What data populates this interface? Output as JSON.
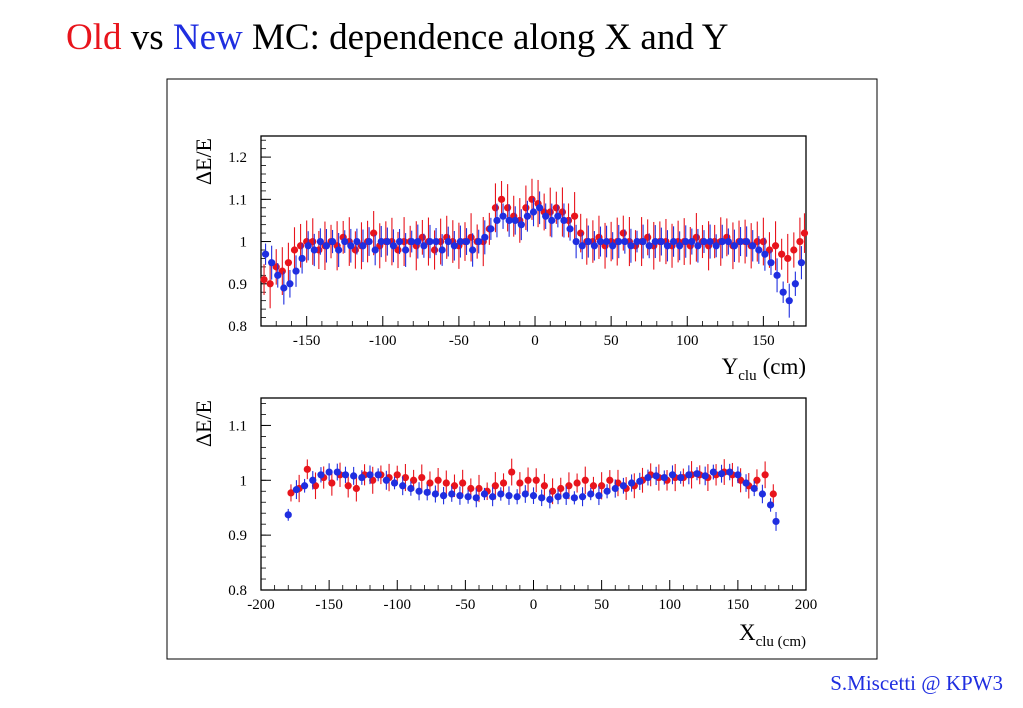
{
  "title": {
    "old": "Old",
    "vs": "vs",
    "new": "New",
    "rest": "MC: dependence along X and Y"
  },
  "footer": "S.Miscetti @ KPW3",
  "colors": {
    "old": "#e8141c",
    "new": "#1f2ee0"
  },
  "chart_data": [
    {
      "type": "scatter",
      "ylabel": "ΔE/E",
      "xlabel": {
        "main": "Y",
        "sub": "clu",
        "unit": "(cm)"
      },
      "xlim": [
        -180,
        178
      ],
      "ylim": [
        0.8,
        1.25
      ],
      "xticks": [
        -150,
        -100,
        -50,
        0,
        50,
        100,
        150
      ],
      "yticks": [
        0.8,
        0.9,
        1,
        1.1,
        1.2
      ],
      "ytick_labels": [
        "0.8",
        "0.9",
        "1",
        "1.1",
        "1.2"
      ],
      "series": [
        {
          "color": "old",
          "x": [
            -178,
            -174,
            -170,
            -166,
            -162,
            -158,
            -154,
            -150,
            -146,
            -142,
            -138,
            -134,
            -130,
            -126,
            -122,
            -118,
            -114,
            -110,
            -106,
            -102,
            -98,
            -94,
            -90,
            -86,
            -82,
            -78,
            -74,
            -70,
            -66,
            -62,
            -58,
            -54,
            -50,
            -46,
            -42,
            -38,
            -34,
            -30,
            -26,
            -22,
            -18,
            -14,
            -10,
            -6,
            -2,
            2,
            6,
            10,
            14,
            18,
            22,
            26,
            30,
            34,
            38,
            42,
            46,
            50,
            54,
            58,
            62,
            66,
            70,
            74,
            78,
            82,
            86,
            90,
            94,
            98,
            102,
            106,
            110,
            114,
            118,
            122,
            126,
            130,
            134,
            138,
            142,
            146,
            150,
            154,
            158,
            162,
            166,
            170,
            174,
            177
          ],
          "y": [
            0.91,
            0.9,
            0.94,
            0.93,
            0.95,
            0.98,
            0.99,
            1.0,
            1.0,
            0.98,
            0.99,
            1.0,
            0.99,
            1.01,
            1.0,
            0.98,
            0.99,
            1.0,
            1.02,
            0.99,
            1.0,
            1.0,
            0.98,
            1.0,
            1.0,
            0.99,
            1.01,
            1.0,
            0.98,
            1.0,
            1.01,
            1.0,
            0.99,
            1.0,
            1.01,
            1.0,
            1.0,
            1.03,
            1.08,
            1.1,
            1.08,
            1.06,
            1.05,
            1.08,
            1.1,
            1.09,
            1.07,
            1.07,
            1.08,
            1.07,
            1.05,
            1.06,
            1.02,
            1.0,
            1.0,
            1.01,
            0.99,
            1.0,
            1.0,
            1.02,
            1.0,
            0.99,
            1.0,
            1.01,
            0.99,
            1.0,
            1.0,
            0.99,
            1.0,
            1.0,
            0.99,
            1.01,
            1.0,
            0.99,
            1.0,
            1.0,
            1.01,
            0.99,
            1.0,
            1.0,
            0.99,
            1.0,
            1.0,
            0.98,
            0.99,
            0.97,
            0.96,
            0.98,
            1.0,
            1.02
          ]
        },
        {
          "color": "new",
          "x": [
            -177,
            -173,
            -169,
            -165,
            -161,
            -157,
            -153,
            -149,
            -145,
            -141,
            -137,
            -133,
            -129,
            -125,
            -121,
            -117,
            -113,
            -109,
            -105,
            -101,
            -97,
            -93,
            -89,
            -85,
            -81,
            -77,
            -73,
            -69,
            -65,
            -61,
            -57,
            -53,
            -49,
            -45,
            -41,
            -37,
            -33,
            -29,
            -25,
            -21,
            -17,
            -13,
            -9,
            -5,
            -1,
            3,
            7,
            11,
            15,
            19,
            23,
            27,
            31,
            35,
            39,
            43,
            47,
            51,
            55,
            59,
            63,
            67,
            71,
            75,
            79,
            83,
            87,
            91,
            95,
            99,
            103,
            107,
            111,
            115,
            119,
            123,
            127,
            131,
            135,
            139,
            143,
            147,
            151,
            155,
            159,
            163,
            167,
            171,
            175
          ],
          "y": [
            0.97,
            0.95,
            0.92,
            0.89,
            0.9,
            0.93,
            0.96,
            0.99,
            0.98,
            1.0,
            0.99,
            1.0,
            0.98,
            1.0,
            0.99,
            1.0,
            0.99,
            1.0,
            0.98,
            1.0,
            1.0,
            0.99,
            1.0,
            0.98,
            1.0,
            1.0,
            0.99,
            1.0,
            1.0,
            0.98,
            1.0,
            0.99,
            1.0,
            1.0,
            0.98,
            1.0,
            1.01,
            1.03,
            1.05,
            1.06,
            1.05,
            1.05,
            1.04,
            1.06,
            1.07,
            1.08,
            1.06,
            1.05,
            1.06,
            1.05,
            1.03,
            1.0,
            0.99,
            1.0,
            0.99,
            1.0,
            1.0,
            0.99,
            1.0,
            1.0,
            0.99,
            1.0,
            1.0,
            0.99,
            1.0,
            1.0,
            0.99,
            1.0,
            0.99,
            1.0,
            1.0,
            0.99,
            1.0,
            1.0,
            0.99,
            1.0,
            1.0,
            0.99,
            1.0,
            1.0,
            0.99,
            0.98,
            0.97,
            0.95,
            0.92,
            0.88,
            0.86,
            0.9,
            0.95
          ]
        }
      ]
    },
    {
      "type": "scatter",
      "ylabel": "ΔE/E",
      "xlabel": {
        "main": "X",
        "sub": "clu (cm)",
        "unit": ""
      },
      "xlim": [
        -200,
        200
      ],
      "ylim": [
        0.8,
        1.15
      ],
      "xticks": [
        -200,
        -150,
        -100,
        -50,
        0,
        50,
        100,
        150,
        200
      ],
      "yticks": [
        0.8,
        0.9,
        1,
        1.1
      ],
      "ytick_labels": [
        "0.8",
        "0.9",
        "1",
        "1.1"
      ],
      "series": [
        {
          "color": "old",
          "x": [
            -178,
            -172,
            -166,
            -160,
            -154,
            -148,
            -142,
            -136,
            -130,
            -124,
            -118,
            -112,
            -106,
            -100,
            -94,
            -88,
            -82,
            -76,
            -70,
            -64,
            -58,
            -52,
            -46,
            -40,
            -34,
            -28,
            -22,
            -16,
            -10,
            -4,
            2,
            8,
            14,
            20,
            26,
            32,
            38,
            44,
            50,
            56,
            62,
            68,
            74,
            80,
            86,
            92,
            98,
            104,
            110,
            116,
            122,
            128,
            134,
            140,
            146,
            152,
            158,
            164,
            170,
            176
          ],
          "y": [
            0.977,
            0.985,
            1.02,
            0.99,
            1.005,
            0.995,
            1.01,
            0.99,
            0.985,
            1.01,
            1.0,
            1.01,
            1.005,
            1.01,
            1.005,
            1.0,
            1.005,
            0.995,
            1.0,
            0.995,
            0.99,
            0.995,
            0.985,
            0.985,
            0.98,
            0.99,
            0.995,
            1.015,
            0.995,
            1.0,
            1.0,
            0.99,
            0.98,
            0.985,
            0.99,
            0.995,
            1.0,
            0.99,
            0.99,
            1.0,
            0.995,
            0.985,
            0.99,
            1.0,
            1.01,
            1.005,
            1.0,
            1.005,
            1.005,
            1.01,
            1.01,
            1.005,
            1.01,
            1.015,
            1.01,
            1.0,
            0.99,
            1.0,
            1.01,
            0.975
          ]
        },
        {
          "color": "new",
          "x": [
            -180,
            -174,
            -168,
            -162,
            -156,
            -150,
            -144,
            -138,
            -132,
            -126,
            -120,
            -114,
            -108,
            -102,
            -96,
            -90,
            -84,
            -78,
            -72,
            -66,
            -60,
            -54,
            -48,
            -42,
            -36,
            -30,
            -24,
            -18,
            -12,
            -6,
            0,
            6,
            12,
            18,
            24,
            30,
            36,
            42,
            48,
            54,
            60,
            66,
            72,
            78,
            84,
            90,
            96,
            102,
            108,
            114,
            120,
            126,
            132,
            138,
            144,
            150,
            156,
            162,
            168,
            174,
            178
          ],
          "y": [
            0.937,
            0.983,
            0.99,
            1.0,
            1.01,
            1.015,
            1.015,
            1.01,
            1.008,
            1.005,
            1.01,
            1.01,
            1.0,
            0.995,
            0.99,
            0.985,
            0.98,
            0.978,
            0.975,
            0.972,
            0.975,
            0.972,
            0.97,
            0.968,
            0.975,
            0.97,
            0.975,
            0.972,
            0.97,
            0.975,
            0.972,
            0.968,
            0.965,
            0.97,
            0.972,
            0.968,
            0.97,
            0.975,
            0.972,
            0.98,
            0.985,
            0.99,
            0.995,
            0.998,
            1.005,
            1.008,
            1.005,
            1.01,
            1.005,
            1.01,
            1.012,
            1.008,
            1.015,
            1.012,
            1.015,
            1.01,
            0.995,
            0.985,
            0.975,
            0.955,
            0.925
          ]
        }
      ]
    }
  ]
}
